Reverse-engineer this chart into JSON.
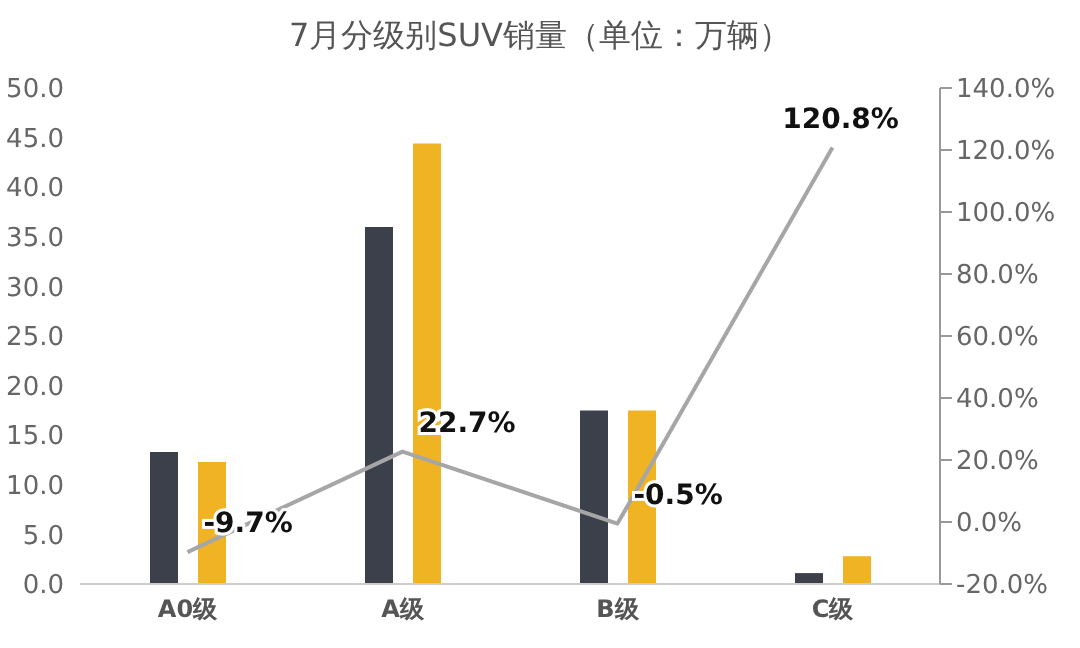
{
  "chart_data": {
    "type": "bar",
    "title": "7月分级别SUV销量（单位：万辆）",
    "categories": [
      "A0级",
      "A级",
      "B级",
      "C级"
    ],
    "series": [
      {
        "color": "#3b404b",
        "values": [
          13.3,
          36.0,
          17.5,
          1.1
        ]
      },
      {
        "color": "#f0b323",
        "values": [
          12.3,
          44.4,
          17.5,
          2.8
        ]
      },
      {
        "type": "line",
        "axis": "y2",
        "color": "#a6a6a6",
        "values": [
          -9.7,
          22.7,
          -0.5,
          120.8
        ],
        "value_labels": [
          "-9.7%",
          "22.7%",
          "-0.5%",
          "120.8%"
        ]
      }
    ],
    "ylim": [
      0,
      50
    ],
    "yticks": [
      {
        "value": 0,
        "label": "0.0"
      },
      {
        "value": 5,
        "label": "5.0"
      },
      {
        "value": 10,
        "label": "10.0"
      },
      {
        "value": 15,
        "label": "15.0"
      },
      {
        "value": 20,
        "label": "20.0"
      },
      {
        "value": 25,
        "label": "25.0"
      },
      {
        "value": 30,
        "label": "30.0"
      },
      {
        "value": 35,
        "label": "35.0"
      },
      {
        "value": 40,
        "label": "40.0"
      },
      {
        "value": 45,
        "label": "45.0"
      },
      {
        "value": 50,
        "label": "50.0"
      }
    ],
    "y2lim": [
      -20,
      140
    ],
    "y2ticks": [
      {
        "value": -20,
        "label": "-20.0%"
      },
      {
        "value": 0,
        "label": "0.0%"
      },
      {
        "value": 20,
        "label": "20.0%"
      },
      {
        "value": 40,
        "label": "40.0%"
      },
      {
        "value": 60,
        "label": "60.0%"
      },
      {
        "value": 80,
        "label": "80.0%"
      },
      {
        "value": 100,
        "label": "100.0%"
      },
      {
        "value": 120,
        "label": "120.0%"
      },
      {
        "value": 140,
        "label": "140.0%"
      }
    ],
    "grid": false,
    "legend": false,
    "marker": "none"
  }
}
